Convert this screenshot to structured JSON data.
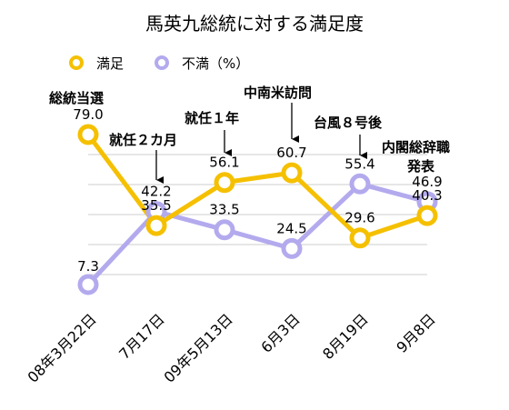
{
  "chart_data": {
    "type": "line",
    "title": "馬英九総統に対する満足度",
    "categories": [
      "08年3月22日",
      "7月17日",
      "09年5月13日",
      "6月3日",
      "8月19日",
      "9月8日"
    ],
    "series": [
      {
        "name": "満足",
        "color": "#f5c000",
        "values": [
          79.0,
          35.5,
          56.1,
          60.7,
          29.6,
          40.3
        ]
      },
      {
        "name": "不満（%）",
        "color": "#b3aaee",
        "values": [
          7.3,
          42.2,
          33.5,
          24.5,
          55.4,
          46.9
        ]
      }
    ],
    "value_labels": [
      [
        "79.0",
        "35.5",
        "56.1",
        "60.7",
        "29.6",
        "40.3"
      ],
      [
        "7.3",
        "42.2",
        "33.5",
        "24.5",
        "55.4",
        "46.9"
      ]
    ],
    "annotations": [
      "総統当選",
      "就任２カ月",
      "就任１年",
      "中南米訪問",
      "台風８号後",
      "内閣総辞職",
      "発表"
    ],
    "grid": true,
    "legend": "top-left"
  }
}
